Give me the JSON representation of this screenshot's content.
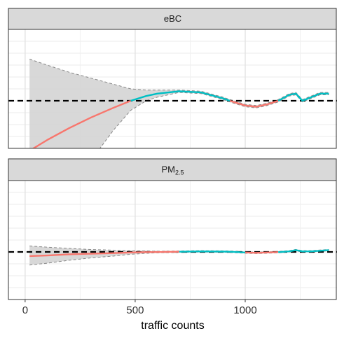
{
  "chart_data": [
    {
      "type": "line",
      "strip": "eBC",
      "x": [
        20,
        100,
        200,
        300,
        400,
        480,
        550,
        600,
        700,
        800,
        900,
        930,
        1000,
        1050,
        1100,
        1150,
        1200,
        1230,
        1260,
        1300,
        1340,
        1380
      ],
      "series": [
        {
          "color": "#F8766D",
          "values": [
            -4.2,
            -3.3,
            -2.3,
            -1.4,
            -0.6,
            0,
            null,
            null,
            null,
            null,
            null,
            0,
            -0.4,
            -0.5,
            -0.3,
            0,
            null,
            null,
            null,
            null,
            null,
            null
          ]
        },
        {
          "color": "#00BFC4",
          "values": [
            null,
            null,
            null,
            null,
            null,
            0,
            0.4,
            0.6,
            0.8,
            0.7,
            0.2,
            0,
            null,
            null,
            null,
            0,
            0.5,
            0.6,
            0,
            0.3,
            0.6,
            0.6
          ]
        }
      ],
      "ribbon": {
        "color": "#d4d4d4",
        "upper": [
          3.5,
          3.0,
          2.4,
          1.9,
          1.4,
          1.0,
          0.9,
          0.9,
          0.9,
          0.8,
          0.3,
          0.1,
          -0.3,
          -0.4,
          -0.2,
          0.1,
          0.6,
          0.7,
          0.1,
          0.4,
          0.7,
          0.7
        ],
        "lower": [
          -12,
          -10,
          -8,
          -5,
          -2.5,
          -0.8,
          0,
          0.3,
          0.7,
          0.6,
          0.1,
          -0.1,
          -0.5,
          -0.6,
          -0.4,
          -0.1,
          0.4,
          0.5,
          -0.1,
          0.2,
          0.5,
          0.5
        ]
      },
      "hline": 0,
      "xlim": [
        -76,
        1417
      ],
      "xticks": [
        0,
        500,
        1000
      ],
      "xminor": [
        250,
        750,
        1250
      ],
      "ylim": [
        -4,
        6
      ],
      "yticks": [
        -4,
        -3,
        -2,
        -1,
        0,
        1,
        2,
        3,
        4,
        5,
        6
      ],
      "grid": true
    },
    {
      "type": "line",
      "strip": "PM",
      "strip_sub": "2.5",
      "x": [
        20,
        100,
        200,
        300,
        400,
        480,
        550,
        600,
        700,
        800,
        900,
        930,
        1000,
        1050,
        1100,
        1150,
        1200,
        1230,
        1260,
        1300,
        1340,
        1380
      ],
      "series": [
        {
          "color": "#F8766D",
          "values": [
            -0.35,
            -0.3,
            -0.2,
            -0.15,
            -0.1,
            -0.05,
            -0.02,
            -0.01,
            0.02,
            null,
            null,
            null,
            -0.05,
            -0.08,
            -0.05,
            -0.02,
            null,
            null,
            null,
            null,
            null,
            null
          ]
        },
        {
          "color": "#00BFC4",
          "values": [
            null,
            null,
            null,
            null,
            null,
            null,
            null,
            null,
            0.02,
            0.05,
            0.03,
            0.02,
            -0.05,
            null,
            null,
            -0.02,
            0.05,
            0.15,
            0.05,
            0.05,
            0.1,
            0.15
          ]
        }
      ],
      "ribbon": {
        "color": "#d4d4d4",
        "upper": [
          0.5,
          0.4,
          0.3,
          0.2,
          0.15,
          0.1,
          0.08,
          0.05,
          0.08,
          0.11,
          0.09,
          0.08,
          0.01,
          -0.02,
          0.01,
          0.04,
          0.11,
          0.21,
          0.11,
          0.11,
          0.16,
          0.21
        ],
        "lower": [
          -1.1,
          -0.95,
          -0.7,
          -0.5,
          -0.35,
          -0.2,
          -0.12,
          -0.07,
          -0.04,
          -0.01,
          -0.03,
          -0.04,
          -0.11,
          -0.14,
          -0.11,
          -0.08,
          -0.01,
          0.09,
          -0.01,
          -0.01,
          0.04,
          0.09
        ]
      },
      "hline": 0,
      "xlim": [
        -76,
        1417
      ],
      "xticks": [
        0,
        500,
        1000
      ],
      "xminor": [
        250,
        750,
        1250
      ],
      "ylim": [
        -4,
        6
      ],
      "yticks": [
        -4,
        -3,
        -2,
        -1,
        0,
        1,
        2,
        3,
        4,
        5,
        6
      ],
      "grid": true,
      "xlabel": "traffic counts"
    }
  ]
}
